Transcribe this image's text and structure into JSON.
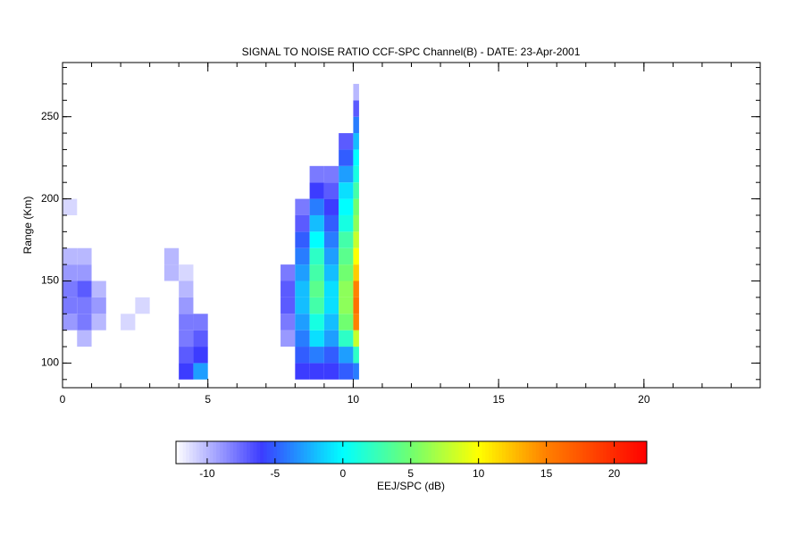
{
  "chart_data": {
    "type": "heatmap",
    "title": "SIGNAL TO NOISE RATIO CCF-SPC Channel(B) - DATE: 23-Apr-2001",
    "ylabel": "Range (Km)",
    "colorbar_label": "EEJ/SPC (dB)",
    "xlim": [
      0,
      24
    ],
    "xticks": [
      0,
      5,
      10,
      15,
      20
    ],
    "xminor": 1,
    "ylim": [
      85,
      283
    ],
    "yticks": [
      100,
      150,
      200,
      250
    ],
    "yminor": 10,
    "clim": [
      -12.3,
      22.4
    ],
    "cticks": [
      -10,
      -5,
      0,
      5,
      10,
      15,
      20
    ],
    "colorscale": [
      [
        -12.3,
        "#ffffff"
      ],
      [
        -6,
        "#3c3cff"
      ],
      [
        0,
        "#00ffff"
      ],
      [
        5,
        "#70ff70"
      ],
      [
        10,
        "#ffff00"
      ],
      [
        15,
        "#ff8000"
      ],
      [
        22.4,
        "#ff0000"
      ]
    ],
    "x_edges": [
      0,
      0.5,
      1,
      1.5,
      2,
      2.5,
      3,
      3.5,
      4,
      4.5,
      5,
      5.5,
      6,
      6.5,
      7,
      7.5,
      8,
      8.5,
      9,
      9.5,
      10,
      10.2
    ],
    "y_edges": [
      90,
      100,
      110,
      120,
      130,
      140,
      150,
      160,
      170,
      180,
      190,
      200,
      210,
      220,
      230,
      240,
      250,
      260,
      270
    ],
    "z": [
      [
        null,
        null,
        null,
        null,
        null,
        null,
        null,
        null,
        -6,
        -3,
        null,
        null,
        null,
        null,
        null,
        null,
        -6,
        -6,
        -6,
        -5,
        -4
      ],
      [
        null,
        null,
        null,
        null,
        null,
        null,
        null,
        null,
        -7,
        -6,
        null,
        null,
        null,
        null,
        null,
        null,
        -5,
        -4,
        -5,
        -3,
        2
      ],
      [
        null,
        -10,
        null,
        null,
        null,
        null,
        null,
        null,
        -8,
        -7,
        null,
        null,
        null,
        null,
        null,
        -9,
        -4,
        -1,
        -3,
        2,
        8
      ],
      [
        -9,
        -8,
        -10,
        null,
        -11,
        null,
        null,
        null,
        -8,
        -8,
        null,
        null,
        null,
        null,
        null,
        -8,
        -3,
        1,
        -2,
        5,
        15
      ],
      [
        -8,
        -8,
        -9,
        null,
        null,
        -11,
        null,
        null,
        -9,
        null,
        null,
        null,
        null,
        null,
        null,
        -7,
        -2,
        3,
        -1,
        6,
        16
      ],
      [
        -8,
        -7,
        -10,
        null,
        null,
        null,
        null,
        null,
        -10,
        null,
        null,
        null,
        null,
        null,
        null,
        -7,
        -2,
        4,
        -1,
        6,
        15
      ],
      [
        -9,
        -9,
        null,
        null,
        null,
        null,
        null,
        -10,
        -11,
        null,
        null,
        null,
        null,
        null,
        null,
        -8,
        -3,
        3,
        -2,
        5,
        12
      ],
      [
        -10,
        -10,
        null,
        null,
        null,
        null,
        null,
        -10,
        null,
        null,
        null,
        null,
        null,
        null,
        null,
        null,
        -4,
        2,
        -3,
        4,
        10
      ],
      [
        null,
        null,
        null,
        null,
        null,
        null,
        null,
        null,
        null,
        null,
        null,
        null,
        null,
        null,
        null,
        null,
        -5,
        0,
        -4,
        3,
        8
      ],
      [
        null,
        null,
        null,
        null,
        null,
        null,
        null,
        null,
        null,
        null,
        null,
        null,
        null,
        null,
        null,
        null,
        -7,
        -2,
        -5,
        1,
        6
      ],
      [
        -11,
        null,
        null,
        null,
        null,
        null,
        null,
        null,
        null,
        null,
        null,
        null,
        null,
        null,
        null,
        null,
        -8,
        -4,
        -6,
        0,
        5
      ],
      [
        null,
        null,
        null,
        null,
        null,
        null,
        null,
        null,
        null,
        null,
        null,
        null,
        null,
        null,
        null,
        null,
        null,
        -6,
        -7,
        -1,
        3
      ],
      [
        null,
        null,
        null,
        null,
        null,
        null,
        null,
        null,
        null,
        null,
        null,
        null,
        null,
        null,
        null,
        null,
        null,
        -8,
        -8,
        -3,
        1
      ],
      [
        null,
        null,
        null,
        null,
        null,
        null,
        null,
        null,
        null,
        null,
        null,
        null,
        null,
        null,
        null,
        null,
        null,
        null,
        null,
        -5,
        0
      ],
      [
        null,
        null,
        null,
        null,
        null,
        null,
        null,
        null,
        null,
        null,
        null,
        null,
        null,
        null,
        null,
        null,
        null,
        null,
        null,
        -7,
        -2
      ],
      [
        null,
        null,
        null,
        null,
        null,
        null,
        null,
        null,
        null,
        null,
        null,
        null,
        null,
        null,
        null,
        null,
        null,
        null,
        null,
        null,
        -4
      ],
      [
        null,
        null,
        null,
        null,
        null,
        null,
        null,
        null,
        null,
        null,
        null,
        null,
        null,
        null,
        null,
        null,
        null,
        null,
        null,
        null,
        -7
      ],
      [
        null,
        null,
        null,
        null,
        null,
        null,
        null,
        null,
        null,
        null,
        null,
        null,
        null,
        null,
        null,
        null,
        null,
        null,
        null,
        null,
        -10
      ]
    ]
  }
}
